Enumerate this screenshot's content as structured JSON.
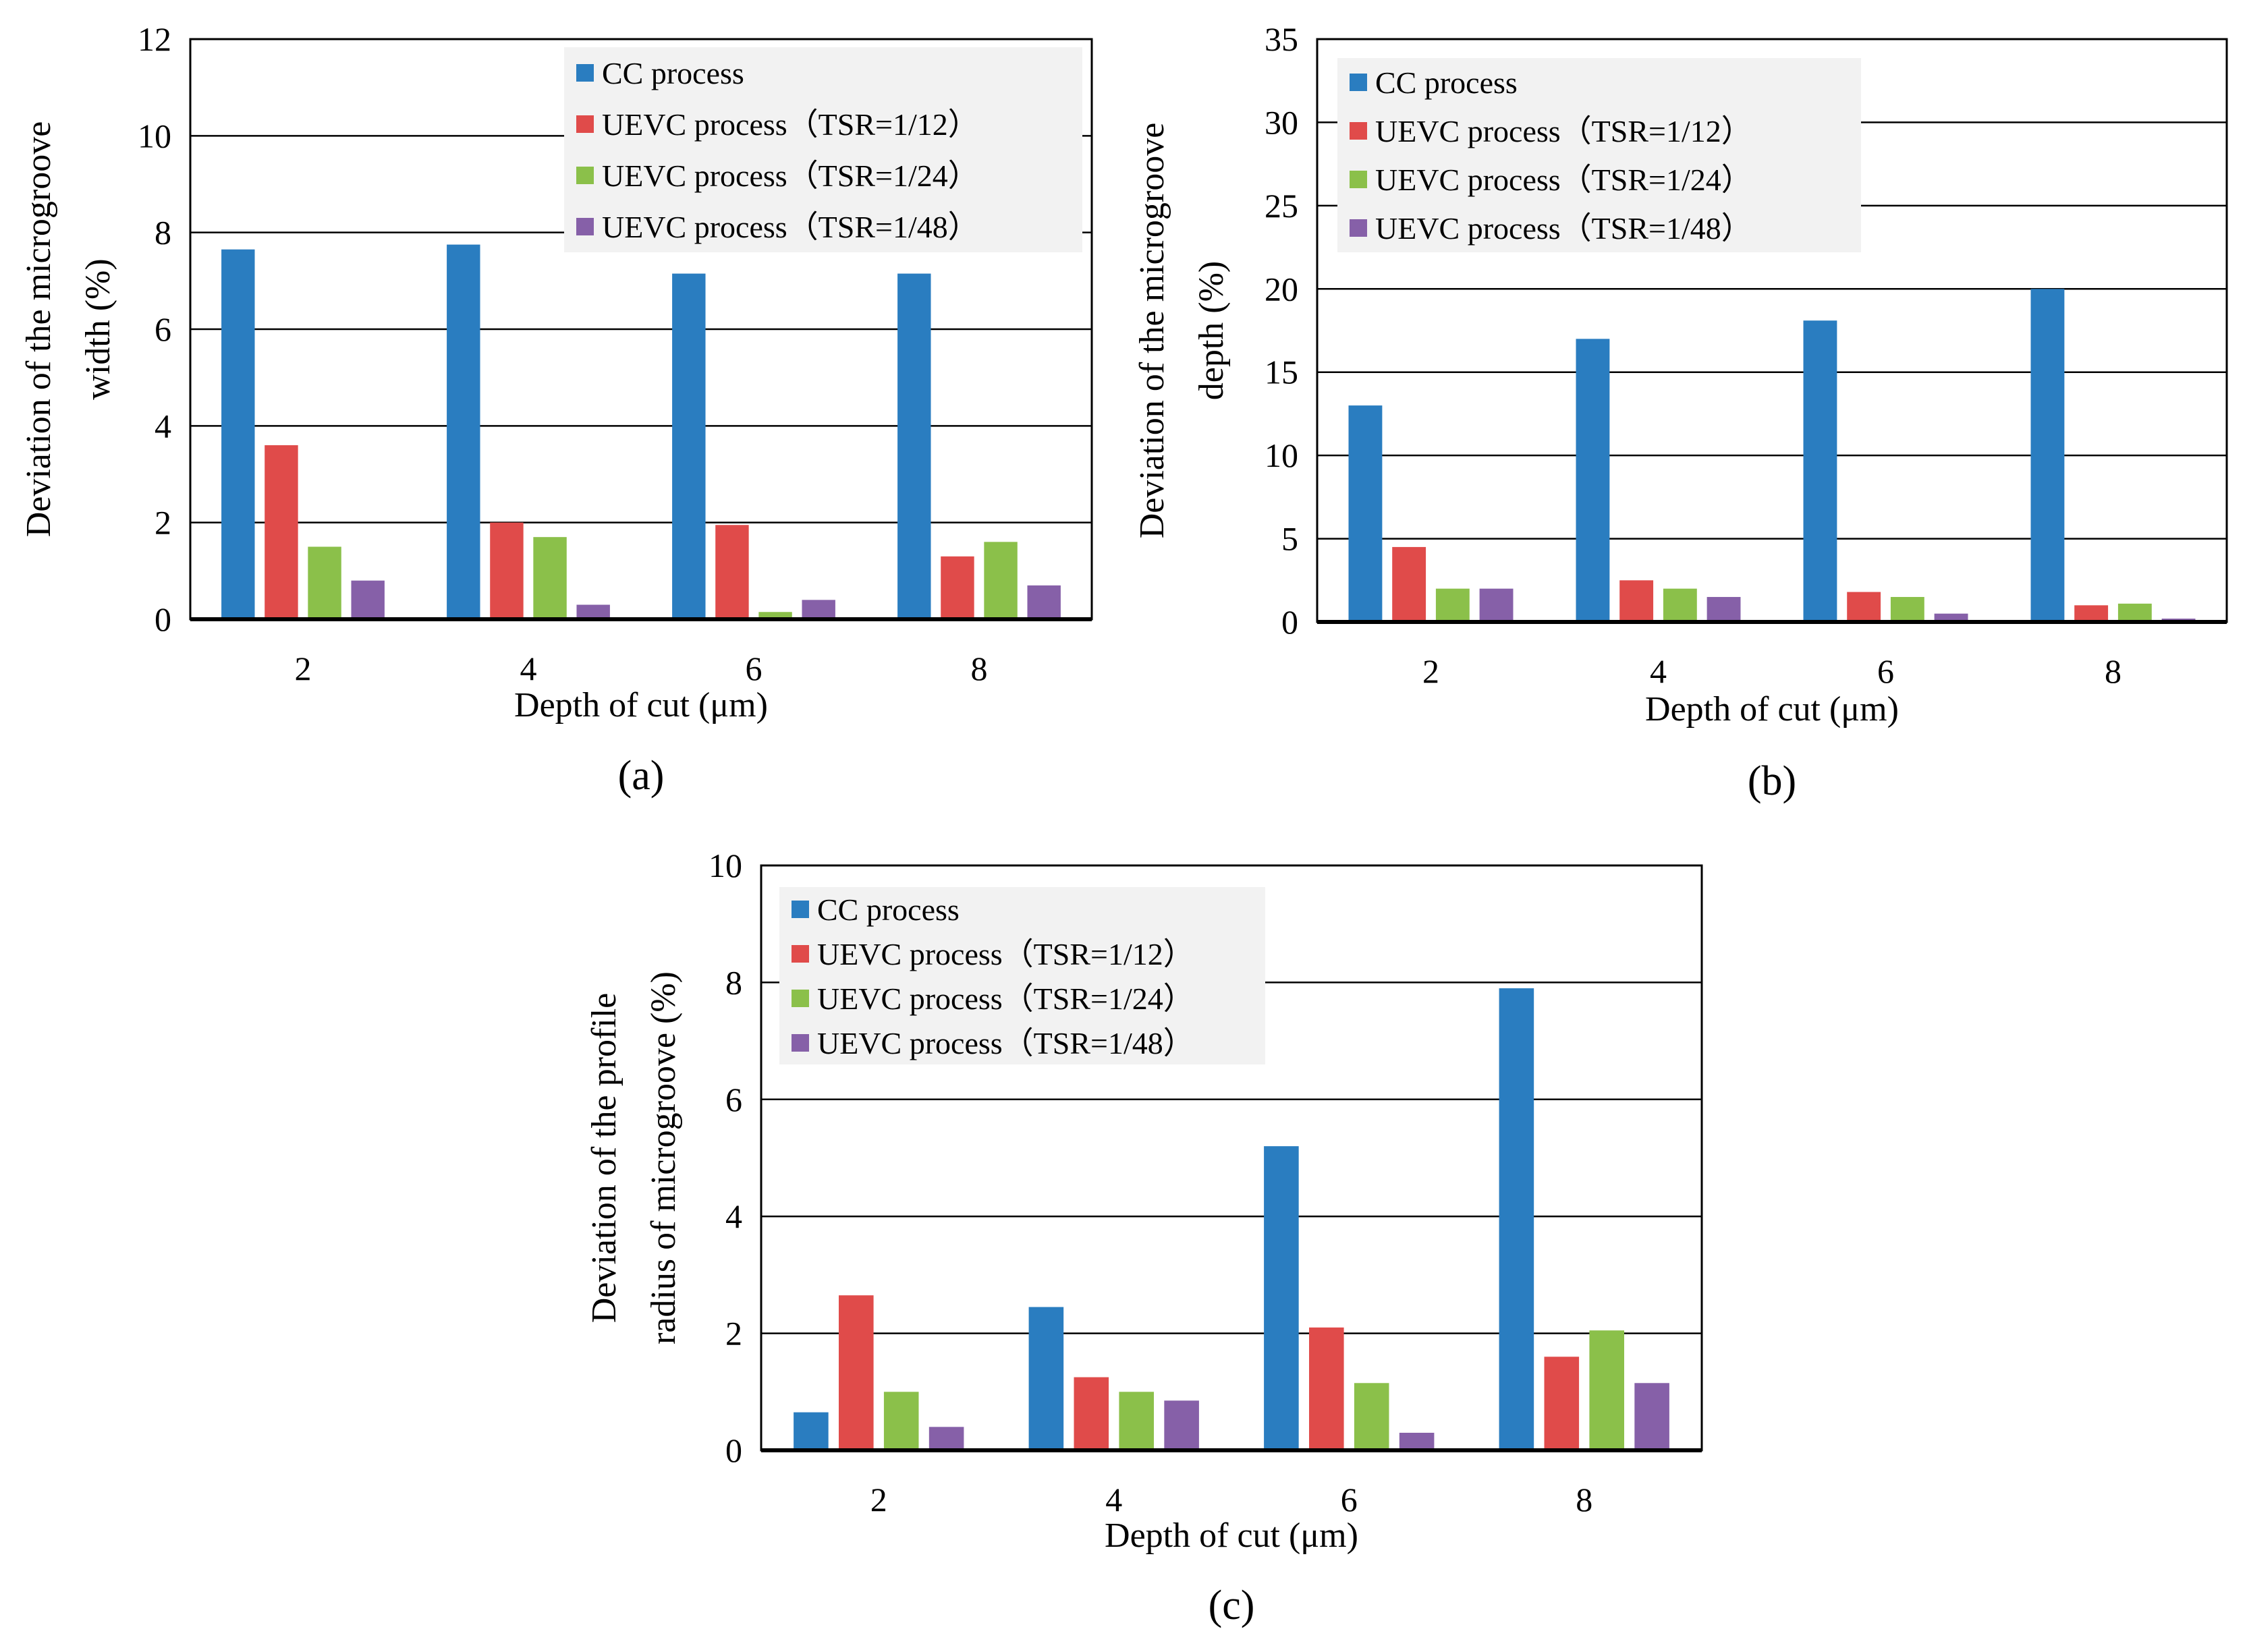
{
  "figure": {
    "panels": [
      {
        "label": "(a)"
      },
      {
        "label": "(b)"
      },
      {
        "label": "(c)"
      }
    ]
  },
  "colors": {
    "CC process": "#2a7dc0",
    "UEVC process（TSR=1/12）": "#e04b4a",
    "UEVC process（TSR=1/24）": "#8bc04a",
    "UEVC process（TSR=1/48）": "#8660a8",
    "grid": "#000000",
    "legend_bg": "#f2f2f2"
  },
  "chart_data": [
    {
      "type": "bar",
      "panel": "(a)",
      "title": "",
      "xlabel": "Depth of cut (μm)",
      "ylabel_lines": [
        "Deviation of the microgroove",
        "width (%)"
      ],
      "categories": [
        "2",
        "4",
        "6",
        "8"
      ],
      "ylim": [
        0,
        12
      ],
      "yticks": [
        0,
        2,
        4,
        6,
        8,
        10,
        12
      ],
      "grid": true,
      "legend_position": "top-right",
      "series": [
        {
          "name": "CC process",
          "values": [
            7.65,
            7.75,
            7.15,
            7.15
          ]
        },
        {
          "name": "UEVC process（TSR=1/12）",
          "values": [
            3.6,
            2.0,
            1.95,
            1.3
          ]
        },
        {
          "name": "UEVC process（TSR=1/24）",
          "values": [
            1.5,
            1.7,
            0.15,
            1.6
          ]
        },
        {
          "name": "UEVC process（TSR=1/48）",
          "values": [
            0.8,
            0.3,
            0.4,
            0.7
          ]
        }
      ]
    },
    {
      "type": "bar",
      "panel": "(b)",
      "title": "",
      "xlabel": "Depth of cut (μm)",
      "ylabel_lines": [
        "Deviation of the microgroove",
        "depth (%)"
      ],
      "categories": [
        "2",
        "4",
        "6",
        "8"
      ],
      "ylim": [
        0,
        35
      ],
      "yticks": [
        0,
        5,
        10,
        15,
        20,
        25,
        30,
        35
      ],
      "grid": true,
      "legend_position": "top-left",
      "series": [
        {
          "name": "CC process",
          "values": [
            13.0,
            17.0,
            18.1,
            20.0
          ]
        },
        {
          "name": "UEVC process（TSR=1/12）",
          "values": [
            4.5,
            2.5,
            1.8,
            1.0
          ]
        },
        {
          "name": "UEVC process（TSR=1/24）",
          "values": [
            2.0,
            2.0,
            1.5,
            1.1
          ]
        },
        {
          "name": "UEVC process（TSR=1/48）",
          "values": [
            2.0,
            1.5,
            0.5,
            0.2
          ]
        }
      ]
    },
    {
      "type": "bar",
      "panel": "(c)",
      "title": "",
      "xlabel": "Depth of cut (μm)",
      "ylabel_lines": [
        "Deviation of the profile",
        "radius of microgroove (%)"
      ],
      "categories": [
        "2",
        "4",
        "6",
        "8"
      ],
      "ylim": [
        0,
        10
      ],
      "yticks": [
        0,
        2,
        4,
        6,
        8,
        10
      ],
      "grid": true,
      "legend_position": "top-left",
      "series": [
        {
          "name": "CC process",
          "values": [
            0.65,
            2.45,
            5.2,
            7.9
          ]
        },
        {
          "name": "UEVC process（TSR=1/12）",
          "values": [
            2.65,
            1.25,
            2.1,
            1.6
          ]
        },
        {
          "name": "UEVC process（TSR=1/24）",
          "values": [
            1.0,
            1.0,
            1.15,
            2.05
          ]
        },
        {
          "name": "UEVC process（TSR=1/48）",
          "values": [
            0.4,
            0.85,
            0.3,
            1.15
          ]
        }
      ]
    }
  ]
}
